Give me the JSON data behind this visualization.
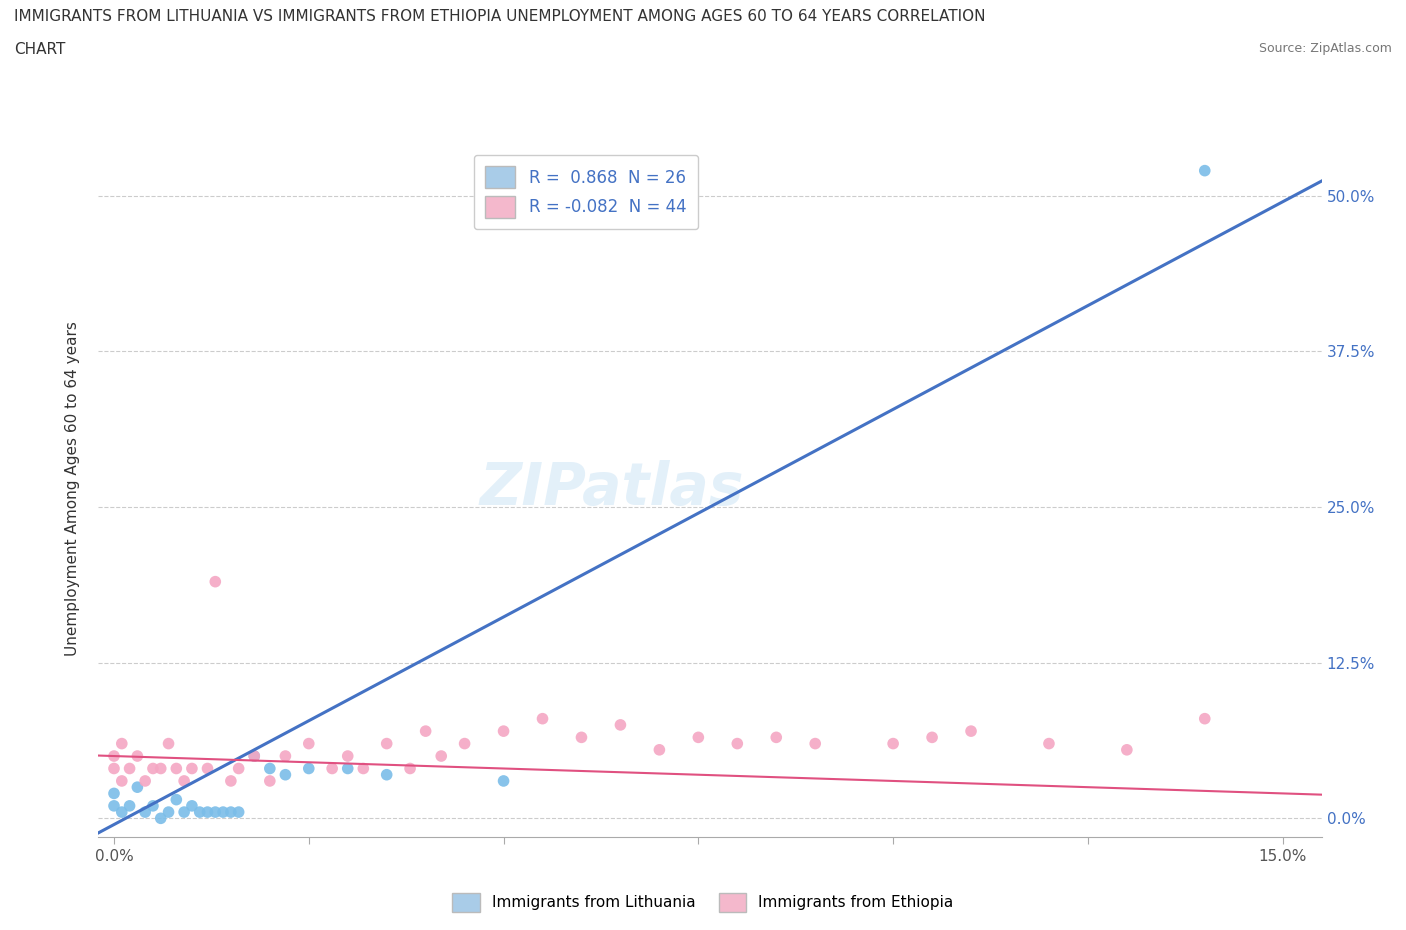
{
  "title_line1": "IMMIGRANTS FROM LITHUANIA VS IMMIGRANTS FROM ETHIOPIA UNEMPLOYMENT AMONG AGES 60 TO 64 YEARS CORRELATION",
  "title_line2": "CHART",
  "source": "Source: ZipAtlas.com",
  "ylabel": "Unemployment Among Ages 60 to 64 years",
  "r_lithuania": 0.868,
  "n_lithuania": 26,
  "r_ethiopia": -0.082,
  "n_ethiopia": 44,
  "color_lithuania": "#7bbde8",
  "color_ethiopia": "#f4a7c3",
  "line_color_lithuania": "#4472c4",
  "line_color_ethiopia": "#e05080",
  "legend_color_lithuania": "#a9cce8",
  "legend_color_ethiopia": "#f4b8cc",
  "watermark": "ZIPatlas",
  "y_tick_positions": [
    0.0,
    0.125,
    0.25,
    0.375,
    0.5
  ],
  "y_tick_labels": [
    "0.0%",
    "12.5%",
    "25.0%",
    "37.5%",
    "50.0%"
  ],
  "xlim": [
    -0.002,
    0.155
  ],
  "ylim": [
    -0.015,
    0.545
  ],
  "legend_label_lithuania": "Immigrants from Lithuania",
  "legend_label_ethiopia": "Immigrants from Ethiopia",
  "lithuania_x": [
    0.0,
    0.0,
    0.001,
    0.002,
    0.003,
    0.004,
    0.005,
    0.006,
    0.007,
    0.008,
    0.009,
    0.01,
    0.011,
    0.012,
    0.013,
    0.014,
    0.015,
    0.016,
    0.018,
    0.02,
    0.022,
    0.025,
    0.03,
    0.035,
    0.05,
    0.14
  ],
  "lithuania_y": [
    0.01,
    0.02,
    0.005,
    0.01,
    0.025,
    0.005,
    0.01,
    0.0,
    0.005,
    0.015,
    0.005,
    0.01,
    0.005,
    0.005,
    0.005,
    0.005,
    0.005,
    0.005,
    0.05,
    0.04,
    0.035,
    0.04,
    0.04,
    0.035,
    0.03,
    0.52
  ],
  "ethiopia_x": [
    0.0,
    0.0,
    0.001,
    0.001,
    0.002,
    0.003,
    0.004,
    0.005,
    0.006,
    0.007,
    0.008,
    0.009,
    0.01,
    0.012,
    0.013,
    0.015,
    0.016,
    0.018,
    0.02,
    0.022,
    0.025,
    0.028,
    0.03,
    0.032,
    0.035,
    0.038,
    0.04,
    0.042,
    0.045,
    0.05,
    0.055,
    0.06,
    0.065,
    0.07,
    0.075,
    0.08,
    0.085,
    0.09,
    0.1,
    0.105,
    0.11,
    0.12,
    0.13,
    0.14
  ],
  "ethiopia_y": [
    0.04,
    0.05,
    0.03,
    0.06,
    0.04,
    0.05,
    0.03,
    0.04,
    0.04,
    0.06,
    0.04,
    0.03,
    0.04,
    0.04,
    0.19,
    0.03,
    0.04,
    0.05,
    0.03,
    0.05,
    0.06,
    0.04,
    0.05,
    0.04,
    0.06,
    0.04,
    0.07,
    0.05,
    0.06,
    0.07,
    0.08,
    0.065,
    0.075,
    0.055,
    0.065,
    0.06,
    0.065,
    0.06,
    0.06,
    0.065,
    0.07,
    0.06,
    0.055,
    0.08
  ]
}
